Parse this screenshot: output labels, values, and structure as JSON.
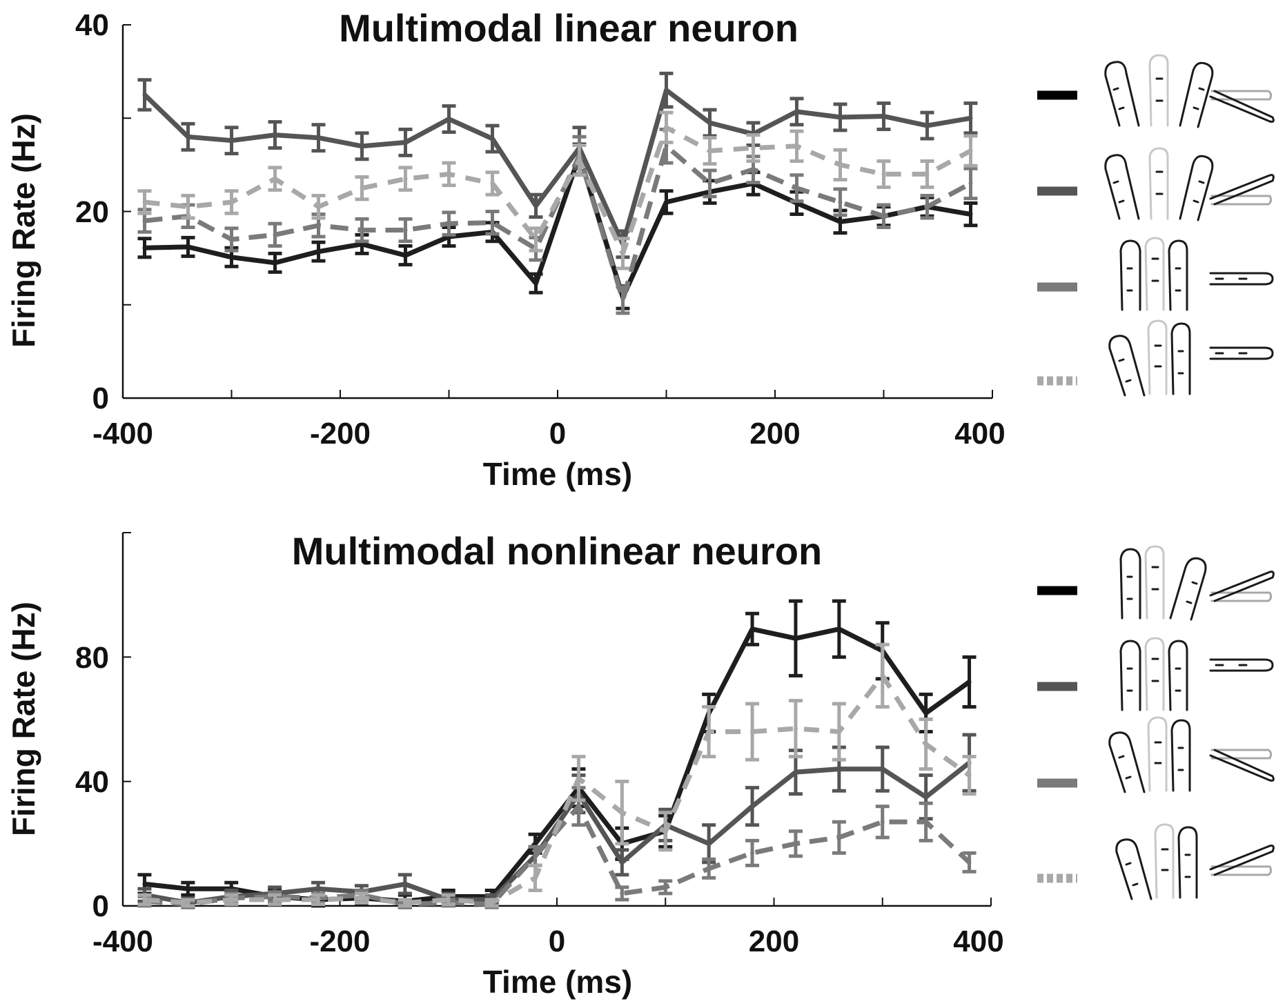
{
  "chart_data": [
    {
      "type": "line",
      "title": "Multimodal linear neuron",
      "xlabel": "Time (ms)",
      "ylabel": "Firing Rate (Hz)",
      "xlim": [
        -400,
        400
      ],
      "ylim": [
        0,
        40
      ],
      "x_ticks": [
        "-400",
        "-200",
        "0",
        "200",
        "400"
      ],
      "y_ticks": [
        "0",
        "20",
        "40"
      ],
      "error_bars": true,
      "x": [
        -380,
        -340,
        -300,
        -260,
        -220,
        -180,
        -140,
        -100,
        -60,
        -20,
        20,
        60,
        100,
        140,
        180,
        220,
        260,
        300,
        340,
        380
      ],
      "series": [
        {
          "color": "#1e1e1e",
          "dash": "solid",
          "values": [
            16.1,
            16.2,
            15.1,
            14.5,
            15.7,
            16.5,
            15.3,
            17.3,
            17.8,
            12.3,
            26.0,
            10.8,
            21.0,
            22.1,
            23.0,
            20.9,
            18.9,
            19.5,
            20.5,
            19.7
          ],
          "errors": [
            1.0,
            1.0,
            1.0,
            1.0,
            1.0,
            1.0,
            1.0,
            1.0,
            1.0,
            1.0,
            1.2,
            1.2,
            1.2,
            1.2,
            1.2,
            1.2,
            1.2,
            1.0,
            1.0,
            1.2
          ]
        },
        {
          "color": "#555555",
          "dash": "solid",
          "values": [
            32.5,
            28.0,
            27.6,
            28.2,
            27.9,
            27.0,
            27.4,
            29.9,
            27.8,
            20.6,
            26.8,
            16.5,
            33.0,
            29.5,
            28.3,
            30.7,
            30.1,
            30.2,
            29.2,
            30.0
          ],
          "errors": [
            1.6,
            1.4,
            1.4,
            1.4,
            1.4,
            1.4,
            1.4,
            1.4,
            1.4,
            1.2,
            2.2,
            1.4,
            1.8,
            1.4,
            1.2,
            1.4,
            1.4,
            1.4,
            1.4,
            1.6
          ]
        },
        {
          "color": "#7a7a7a",
          "dash": "dashed",
          "values": [
            19.0,
            19.5,
            17.0,
            17.5,
            18.5,
            18.0,
            18.0,
            18.7,
            18.8,
            16.0,
            26.0,
            10.5,
            27.0,
            23.0,
            24.5,
            22.5,
            21.0,
            19.5,
            20.5,
            23.0
          ],
          "errors": [
            1.2,
            1.2,
            1.2,
            1.2,
            1.2,
            1.2,
            1.2,
            1.2,
            1.2,
            1.2,
            2.0,
            1.4,
            1.8,
            1.4,
            1.4,
            1.4,
            1.4,
            1.2,
            1.2,
            1.6
          ]
        },
        {
          "color": "#a8a8a8",
          "dash": "dotted",
          "values": [
            21.0,
            20.5,
            21.0,
            23.5,
            20.5,
            22.5,
            23.5,
            24.0,
            23.0,
            17.0,
            25.5,
            15.5,
            29.0,
            26.5,
            26.8,
            27.0,
            25.0,
            24.0,
            24.0,
            26.5
          ],
          "errors": [
            1.2,
            1.2,
            1.2,
            1.2,
            1.2,
            1.2,
            1.2,
            1.2,
            1.2,
            1.2,
            1.6,
            1.6,
            1.6,
            1.4,
            1.4,
            1.6,
            1.6,
            1.4,
            1.4,
            1.6
          ]
        }
      ]
    },
    {
      "type": "line",
      "title": "Multimodal nonlinear neuron",
      "xlabel": "Time (ms)",
      "ylabel": "Firing Rate (Hz)",
      "xlim": [
        -400,
        400
      ],
      "ylim": [
        0,
        120
      ],
      "x_ticks": [
        "-400",
        "-200",
        "0",
        "200",
        "400"
      ],
      "y_ticks": [
        "0",
        "40",
        "80"
      ],
      "error_bars": true,
      "x": [
        -380,
        -340,
        -300,
        -260,
        -220,
        -180,
        -140,
        -100,
        -60,
        -20,
        20,
        60,
        100,
        140,
        180,
        220,
        260,
        300,
        340,
        380
      ],
      "series": [
        {
          "color": "#1e1e1e",
          "dash": "solid",
          "values": [
            7.0,
            5.5,
            5.5,
            3.0,
            2.0,
            2.5,
            1.5,
            3.0,
            3.0,
            20.0,
            38.0,
            20.0,
            24.0,
            62.0,
            89.0,
            86.0,
            89.0,
            82.0,
            62.0,
            72.0
          ],
          "errors": [
            3.0,
            2.0,
            2.0,
            2.0,
            2.0,
            2.0,
            2.0,
            2.0,
            2.0,
            3.0,
            6.0,
            5.0,
            5.0,
            6.0,
            5.0,
            12.0,
            9.0,
            9.0,
            6.0,
            8.0
          ]
        },
        {
          "color": "#555555",
          "dash": "solid",
          "values": [
            3.5,
            1.0,
            3.0,
            4.0,
            5.5,
            4.5,
            7.0,
            2.0,
            2.0,
            16.0,
            36.0,
            14.0,
            26.0,
            20.0,
            32.0,
            43.0,
            44.0,
            44.0,
            35.0,
            46.0
          ],
          "errors": [
            2.0,
            1.5,
            2.0,
            2.0,
            2.0,
            2.0,
            3.0,
            2.0,
            1.5,
            3.0,
            6.0,
            4.0,
            5.0,
            6.0,
            6.0,
            7.0,
            7.0,
            7.0,
            7.0,
            9.0
          ]
        },
        {
          "color": "#7a7a7a",
          "dash": "dashed",
          "values": [
            1.5,
            0.5,
            2.5,
            3.0,
            2.5,
            3.5,
            0.5,
            1.0,
            0.5,
            16.0,
            32.0,
            4.0,
            6.0,
            12.0,
            17.0,
            20.0,
            22.0,
            27.0,
            27.0,
            14.0
          ],
          "errors": [
            1.5,
            1.0,
            1.5,
            1.5,
            1.5,
            1.5,
            1.0,
            1.0,
            1.0,
            3.0,
            6.0,
            2.0,
            2.0,
            3.0,
            4.0,
            4.0,
            5.0,
            5.0,
            6.0,
            3.0
          ]
        },
        {
          "color": "#a8a8a8",
          "dash": "dotted",
          "values": [
            2.0,
            1.0,
            2.0,
            2.0,
            2.0,
            2.5,
            1.0,
            2.0,
            1.0,
            9.0,
            41.0,
            30.0,
            24.0,
            56.0,
            56.0,
            57.0,
            56.0,
            74.0,
            52.0,
            42.0
          ],
          "errors": [
            1.5,
            1.0,
            1.5,
            1.5,
            1.5,
            1.5,
            1.0,
            1.5,
            1.0,
            4.0,
            7.0,
            10.0,
            6.0,
            8.0,
            9.0,
            9.0,
            9.0,
            10.0,
            8.0,
            6.0
          ]
        }
      ]
    }
  ]
}
